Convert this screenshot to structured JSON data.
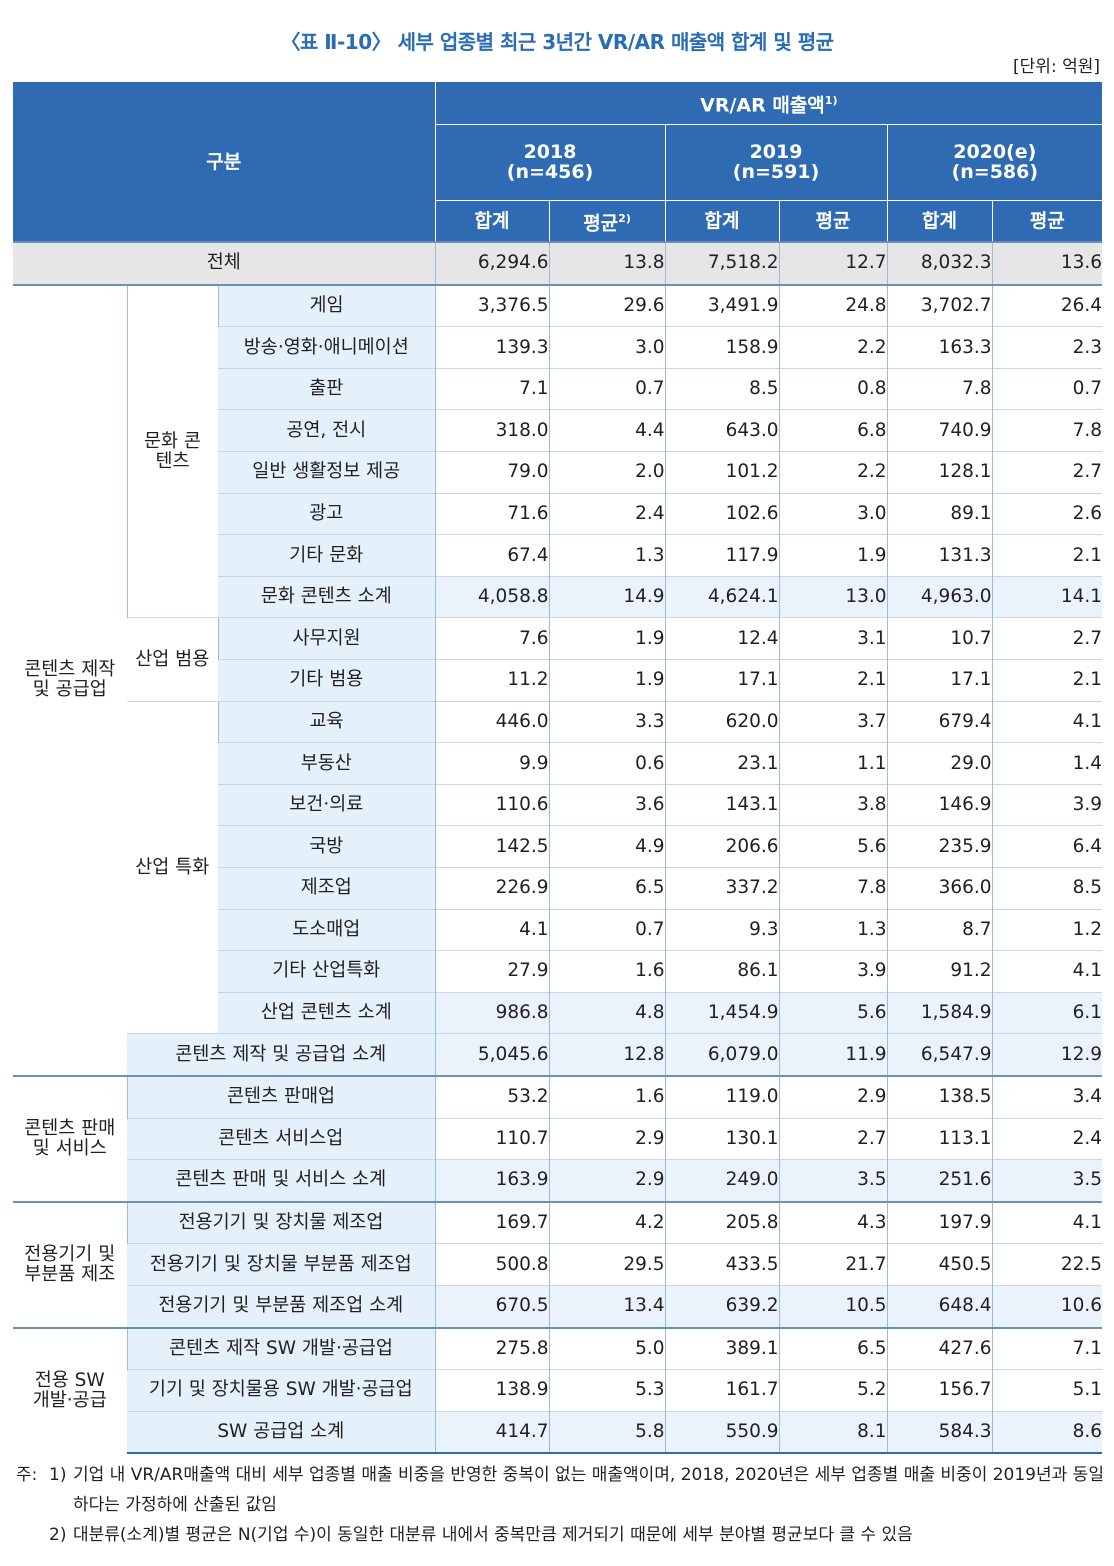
{
  "title": "〈표 Ⅱ-10〉 세부 업종별 최근 3년간 VR/AR 매출액 합계 및 평균",
  "unit": "[단위: 억원]",
  "header": {
    "gubun": "구분",
    "group": "VR/AR 매출액",
    "group_sup": "1)",
    "years": [
      {
        "year": "2018",
        "n": "(n=456)"
      },
      {
        "year": "2019",
        "n": "(n=591)"
      },
      {
        "year": "2020(e)",
        "n": "(n=586)"
      }
    ],
    "sum": "합계",
    "avg": "평균",
    "avg_sup": "2)"
  },
  "total": {
    "label": "전체",
    "v": [
      "6,294.6",
      "13.8",
      "7,518.2",
      "12.7",
      "8,032.3",
      "13.6"
    ]
  },
  "groups": {
    "content_prod": "콘텐츠 제작 및 공급업",
    "culture": "문화 콘텐츠",
    "industry_general": "산업 범용",
    "industry_special": "산업 특화",
    "sales_service": "콘텐츠 판매 및 서비스",
    "device_mfg": "전용기기 및 부분품 제조",
    "sw_dev": "전용 SW 개발·공급"
  },
  "rows": [
    {
      "label": "게임",
      "v": [
        "3,376.5",
        "29.6",
        "3,491.9",
        "24.8",
        "3,702.7",
        "26.4"
      ]
    },
    {
      "label": "방송·영화·애니메이션",
      "v": [
        "139.3",
        "3.0",
        "158.9",
        "2.2",
        "163.3",
        "2.3"
      ]
    },
    {
      "label": "출판",
      "v": [
        "7.1",
        "0.7",
        "8.5",
        "0.8",
        "7.8",
        "0.7"
      ]
    },
    {
      "label": "공연, 전시",
      "v": [
        "318.0",
        "4.4",
        "643.0",
        "6.8",
        "740.9",
        "7.8"
      ]
    },
    {
      "label": "일반 생활정보 제공",
      "v": [
        "79.0",
        "2.0",
        "101.2",
        "2.2",
        "128.1",
        "2.7"
      ]
    },
    {
      "label": "광고",
      "v": [
        "71.6",
        "2.4",
        "102.6",
        "3.0",
        "89.1",
        "2.6"
      ]
    },
    {
      "label": "기타 문화",
      "v": [
        "67.4",
        "1.3",
        "117.9",
        "1.9",
        "131.3",
        "2.1"
      ]
    },
    {
      "label": "문화 콘텐츠 소계",
      "v": [
        "4,058.8",
        "14.9",
        "4,624.1",
        "13.0",
        "4,963.0",
        "14.1"
      ]
    },
    {
      "label": "사무지원",
      "v": [
        "7.6",
        "1.9",
        "12.4",
        "3.1",
        "10.7",
        "2.7"
      ]
    },
    {
      "label": "기타 범용",
      "v": [
        "11.2",
        "1.9",
        "17.1",
        "2.1",
        "17.1",
        "2.1"
      ]
    },
    {
      "label": "교육",
      "v": [
        "446.0",
        "3.3",
        "620.0",
        "3.7",
        "679.4",
        "4.1"
      ]
    },
    {
      "label": "부동산",
      "v": [
        "9.9",
        "0.6",
        "23.1",
        "1.1",
        "29.0",
        "1.4"
      ]
    },
    {
      "label": "보건·의료",
      "v": [
        "110.6",
        "3.6",
        "143.1",
        "3.8",
        "146.9",
        "3.9"
      ]
    },
    {
      "label": "국방",
      "v": [
        "142.5",
        "4.9",
        "206.6",
        "5.6",
        "235.9",
        "6.4"
      ]
    },
    {
      "label": "제조업",
      "v": [
        "226.9",
        "6.5",
        "337.2",
        "7.8",
        "366.0",
        "8.5"
      ]
    },
    {
      "label": "도소매업",
      "v": [
        "4.1",
        "0.7",
        "9.3",
        "1.3",
        "8.7",
        "1.2"
      ]
    },
    {
      "label": "기타 산업특화",
      "v": [
        "27.9",
        "1.6",
        "86.1",
        "3.9",
        "91.2",
        "4.1"
      ]
    },
    {
      "label": "산업 콘텐츠 소계",
      "v": [
        "986.8",
        "4.8",
        "1,454.9",
        "5.6",
        "1,584.9",
        "6.1"
      ]
    },
    {
      "label": "콘텐츠 제작 및 공급업 소계",
      "v": [
        "5,045.6",
        "12.8",
        "6,079.0",
        "11.9",
        "6,547.9",
        "12.9"
      ]
    },
    {
      "label": "콘텐츠 판매업",
      "v": [
        "53.2",
        "1.6",
        "119.0",
        "2.9",
        "138.5",
        "3.4"
      ]
    },
    {
      "label": "콘텐츠 서비스업",
      "v": [
        "110.7",
        "2.9",
        "130.1",
        "2.7",
        "113.1",
        "2.4"
      ]
    },
    {
      "label": "콘텐츠 판매 및 서비스 소계",
      "v": [
        "163.9",
        "2.9",
        "249.0",
        "3.5",
        "251.6",
        "3.5"
      ]
    },
    {
      "label": "전용기기 및 장치물 제조업",
      "v": [
        "169.7",
        "4.2",
        "205.8",
        "4.3",
        "197.9",
        "4.1"
      ]
    },
    {
      "label": "전용기기 및 장치물 부분품 제조업",
      "v": [
        "500.8",
        "29.5",
        "433.5",
        "21.7",
        "450.5",
        "22.5"
      ]
    },
    {
      "label": "전용기기 및 부분품 제조업 소계",
      "v": [
        "670.5",
        "13.4",
        "639.2",
        "10.5",
        "648.4",
        "10.6"
      ]
    },
    {
      "label": "콘텐츠 제작 SW 개발·공급업",
      "v": [
        "275.8",
        "5.0",
        "389.1",
        "6.5",
        "427.6",
        "7.1"
      ]
    },
    {
      "label": "기기 및 장치물용 SW 개발·공급업",
      "v": [
        "138.9",
        "5.3",
        "161.7",
        "5.2",
        "156.7",
        "5.1"
      ]
    },
    {
      "label": "SW 공급업 소계",
      "v": [
        "414.7",
        "5.8",
        "550.9",
        "8.1",
        "584.3",
        "8.6"
      ]
    }
  ],
  "notes": {
    "prefix": "주:",
    "items": [
      {
        "num": "1)",
        "text": "기업 내 VR/AR매출액 대비 세부 업종별 매출 비중을 반영한 중복이 없는 매출액이며, 2018, 2020년은 세부 업종별 매출 비중이 2019년과 동일하다는 가정하에 산출된 값임"
      },
      {
        "num": "2)",
        "text": "대분류(소계)별 평균은 N(기업 수)이 동일한 대분류 내에서 중복만큼 제거되기 때문에 세부 분야별 평균보다 클 수 있음"
      }
    ]
  }
}
